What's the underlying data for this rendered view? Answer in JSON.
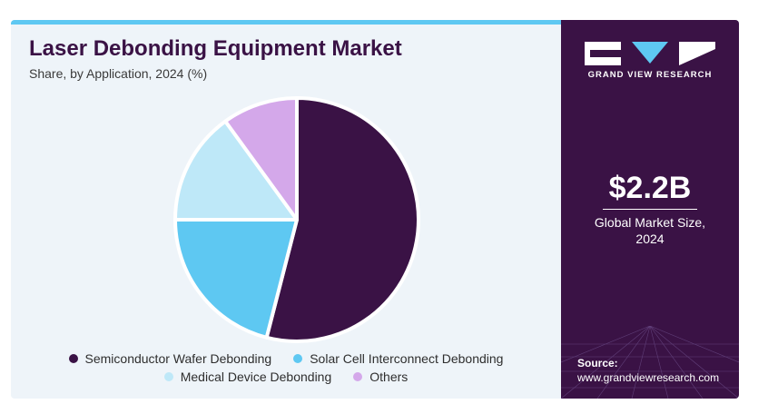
{
  "header": {
    "title": "Laser Debonding Equipment Market",
    "subtitle": "Share, by Application, 2024 (%)"
  },
  "chart_data": {
    "type": "pie",
    "title": "Laser Debonding Equipment Market",
    "subtitle": "Share, by Application, 2024 (%)",
    "legend_placement": "bottom",
    "series": [
      {
        "name": "Semiconductor Wafer Debonding",
        "value": 54,
        "color": "#3a1245"
      },
      {
        "name": "Solar Cell Interconnect Debonding",
        "value": 21,
        "color": "#5ec8f2"
      },
      {
        "name": "Medical Device Debonding",
        "value": 15,
        "color": "#bee8f8"
      },
      {
        "name": "Others",
        "value": 10,
        "color": "#d4a8ea"
      }
    ]
  },
  "sidebar": {
    "brand": "GRAND VIEW RESEARCH",
    "market_size": "$2.2B",
    "market_size_desc_line1": "Global Market Size,",
    "market_size_desc_line2": "2024",
    "source_label": "Source:",
    "source_url": "www.grandviewresearch.com",
    "colors": {
      "background": "#3a1245",
      "accent": "#5ec8f2"
    }
  }
}
